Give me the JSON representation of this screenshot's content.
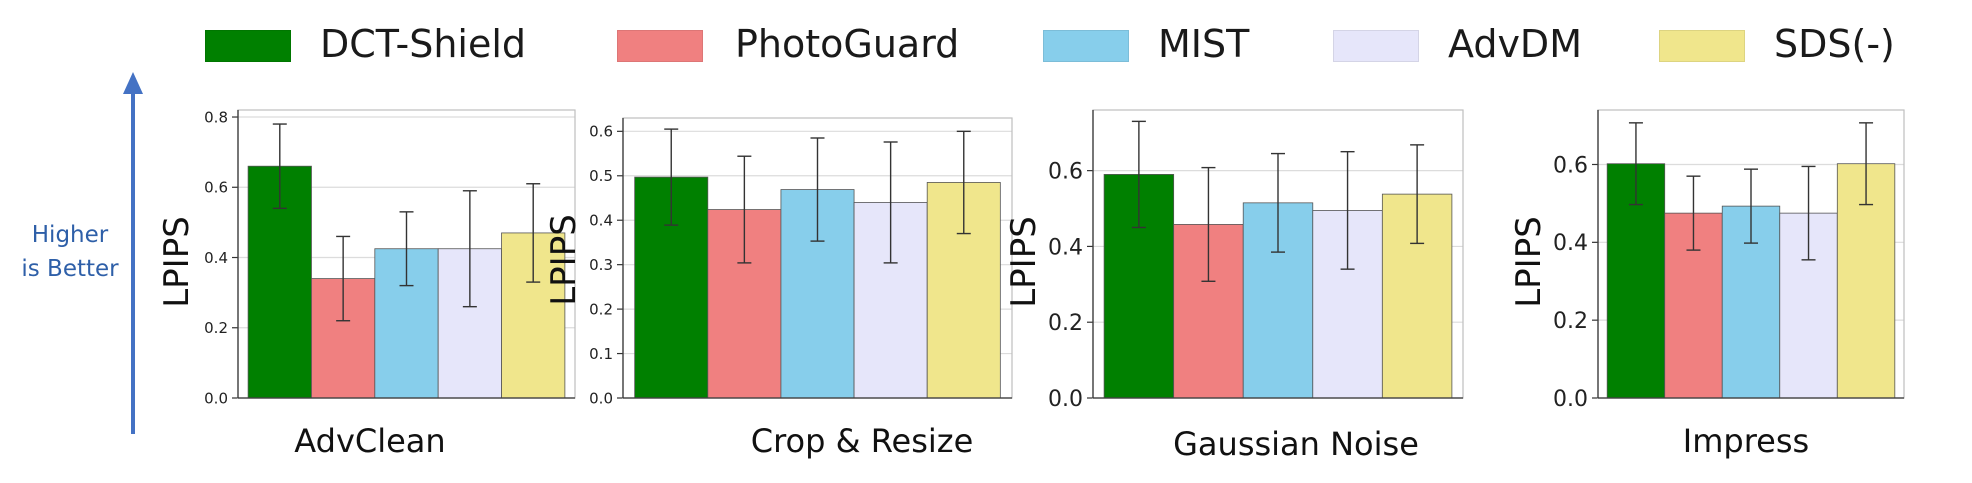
{
  "legend": {
    "items": [
      {
        "label": "DCT-Shield",
        "color": "#008000"
      },
      {
        "label": "PhotoGuard",
        "color": "#f08080"
      },
      {
        "label": "MIST",
        "color": "#87ceeb"
      },
      {
        "label": "AdvDM",
        "color": "#e6e6fa"
      },
      {
        "label": "SDS(-)",
        "color": "#f0e68c"
      }
    ]
  },
  "annotation": {
    "line1": "Higher",
    "line2": "is Better",
    "arrow_color": "#4472c4",
    "text_color": "#2e5fa8"
  },
  "chart_data": [
    {
      "type": "bar",
      "title": "AdvClean",
      "ylabel": "LPIPS",
      "ylim": [
        0,
        0.82
      ],
      "yticks": [
        "0.0",
        "0.2",
        "0.4",
        "0.6",
        "0.8"
      ],
      "ytick_values": [
        0,
        0.2,
        0.4,
        0.6,
        0.8
      ],
      "grid": true,
      "series": [
        {
          "name": "DCT-Shield",
          "value": 0.66,
          "err": 0.12
        },
        {
          "name": "PhotoGuard",
          "value": 0.34,
          "err": 0.12
        },
        {
          "name": "MIST",
          "value": 0.425,
          "err": 0.105
        },
        {
          "name": "AdvDM",
          "value": 0.425,
          "err": 0.165
        },
        {
          "name": "SDS(-)",
          "value": 0.47,
          "err": 0.14
        }
      ]
    },
    {
      "type": "bar",
      "title": "Crop & Resize",
      "ylabel": "LPIPS",
      "ylim": [
        0,
        0.63
      ],
      "yticks": [
        "0.0",
        "0.1",
        "0.2",
        "0.3",
        "0.4",
        "0.5",
        "0.6"
      ],
      "ytick_values": [
        0,
        0.1,
        0.2,
        0.3,
        0.4,
        0.5,
        0.6
      ],
      "grid": true,
      "series": [
        {
          "name": "DCT-Shield",
          "value": 0.497,
          "err": 0.108
        },
        {
          "name": "PhotoGuard",
          "value": 0.424,
          "err": 0.12
        },
        {
          "name": "MIST",
          "value": 0.469,
          "err": 0.116
        },
        {
          "name": "AdvDM",
          "value": 0.44,
          "err": 0.136
        },
        {
          "name": "SDS(-)",
          "value": 0.485,
          "err": 0.115
        }
      ]
    },
    {
      "type": "bar",
      "title": "Gaussian Noise",
      "ylabel": "LPIPS",
      "ylim": [
        0,
        0.76
      ],
      "yticks": [
        "0.0",
        "0.2",
        "0.4",
        "0.6"
      ],
      "ytick_values": [
        0,
        0.2,
        0.4,
        0.6
      ],
      "grid": true,
      "series": [
        {
          "name": "DCT-Shield",
          "value": 0.59,
          "err": 0.14
        },
        {
          "name": "PhotoGuard",
          "value": 0.458,
          "err": 0.15
        },
        {
          "name": "MIST",
          "value": 0.515,
          "err": 0.13
        },
        {
          "name": "AdvDM",
          "value": 0.495,
          "err": 0.155
        },
        {
          "name": "SDS(-)",
          "value": 0.538,
          "err": 0.13
        }
      ]
    },
    {
      "type": "bar",
      "title": "Impress",
      "ylabel": "LPIPS",
      "ylim": [
        0,
        0.74
      ],
      "yticks": [
        "0.0",
        "0.2",
        "0.4",
        "0.6"
      ],
      "ytick_values": [
        0,
        0.2,
        0.4,
        0.6
      ],
      "grid": true,
      "series": [
        {
          "name": "DCT-Shield",
          "value": 0.602,
          "err": 0.105
        },
        {
          "name": "PhotoGuard",
          "value": 0.475,
          "err": 0.095
        },
        {
          "name": "MIST",
          "value": 0.493,
          "err": 0.095
        },
        {
          "name": "AdvDM",
          "value": 0.475,
          "err": 0.12
        },
        {
          "name": "SDS(-)",
          "value": 0.602,
          "err": 0.105
        }
      ]
    }
  ]
}
